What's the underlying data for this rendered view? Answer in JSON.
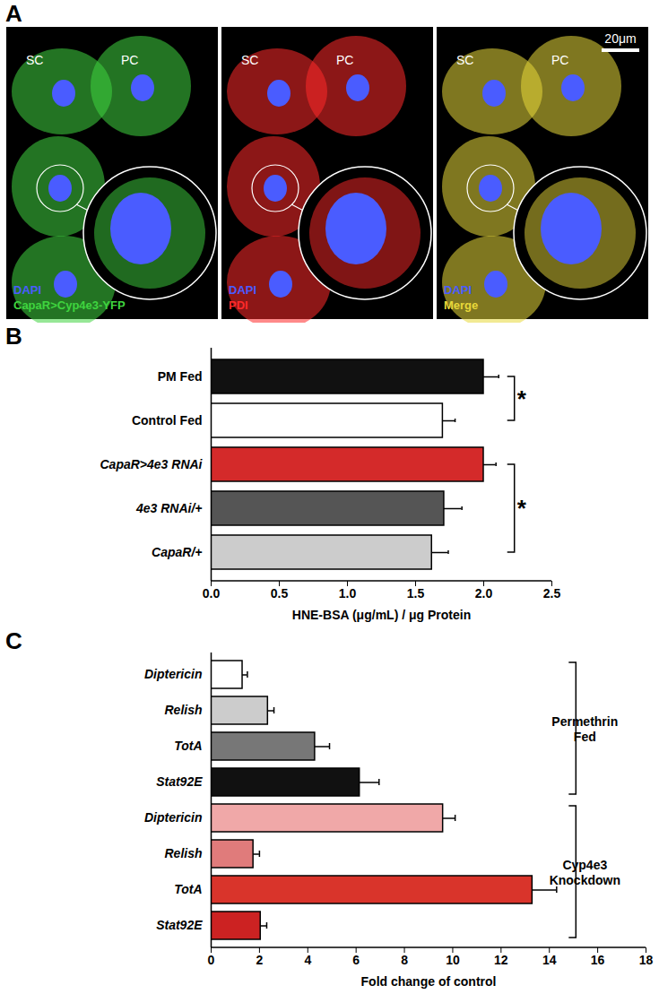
{
  "images": {
    "title": "A",
    "scale_bar": "20μm",
    "cell_labels": [
      "SC",
      "PC"
    ],
    "panels": [
      {
        "channels": [
          {
            "name": "DAPI",
            "color": "#4a5cff"
          },
          {
            "name": "CapaR>Cyp4e3-YFP",
            "color": "#3fd43f"
          }
        ]
      },
      {
        "channels": [
          {
            "name": "DAPI",
            "color": "#4a5cff"
          },
          {
            "name": "PDI",
            "color": "#ff2a2a"
          }
        ]
      },
      {
        "channels": [
          {
            "name": "DAPI",
            "color": "#4a5cff"
          },
          {
            "name": "Merge",
            "color": "#e8d83a"
          }
        ]
      }
    ]
  },
  "chart_data": [
    {
      "type": "bar",
      "title": "B",
      "orientation": "horizontal",
      "categories": [
        "PM Fed",
        "Control Fed",
        "CapaR>4e3 RNAi",
        "4e3 RNAi/+",
        "CapaR/+"
      ],
      "values": [
        2.0,
        1.7,
        2.0,
        1.71,
        1.62
      ],
      "errors": [
        0.11,
        0.09,
        0.09,
        0.13,
        0.12
      ],
      "colors": [
        "#111111",
        "#ffffff",
        "#d42a2a",
        "#555555",
        "#cccccc"
      ],
      "xlabel": "HNE-BSA (μg/mL) / μg Protein",
      "xlim": [
        0,
        2.5
      ],
      "xticks": [
        {
          "value": 0,
          "label": "0.0"
        },
        0.5,
        {
          "value": 1,
          "label": "1.0"
        },
        1.5,
        {
          "value": 2,
          "label": "2.0"
        },
        2.5
      ],
      "annotations": [
        {
          "text": "*",
          "categories": [
            "PM Fed",
            "Control Fed"
          ]
        },
        {
          "text": "*",
          "categories": [
            "CapaR>4e3 RNAi",
            "CapaR/+"
          ]
        }
      ]
    },
    {
      "type": "bar",
      "title": "C",
      "orientation": "horizontal",
      "series": [
        {
          "name": "Permethrin Fed",
          "categories": [
            "Diptericin",
            "Relish",
            "TotA",
            "Stat92E"
          ],
          "values": [
            1.3,
            2.35,
            4.3,
            6.15
          ],
          "errors": [
            0.2,
            0.25,
            0.6,
            0.8
          ],
          "colors": [
            "#ffffff",
            "#cccccc",
            "#777777",
            "#111111"
          ]
        },
        {
          "name": "Cyp4e3 Knockdown",
          "categories": [
            "Diptericin",
            "Relish",
            "TotA",
            "Stat92E"
          ],
          "values": [
            9.6,
            1.75,
            13.3,
            2.05
          ],
          "errors": [
            0.5,
            0.25,
            1.0,
            0.25
          ],
          "colors": [
            "#f0a8a8",
            "#e07b7b",
            "#d9342b",
            "#cc2222"
          ]
        }
      ],
      "xlabel": "Fold change of control",
      "xlim": [
        0,
        18
      ],
      "xticks": [
        0,
        2,
        4,
        6,
        8,
        10,
        12,
        14,
        16,
        18
      ]
    }
  ]
}
